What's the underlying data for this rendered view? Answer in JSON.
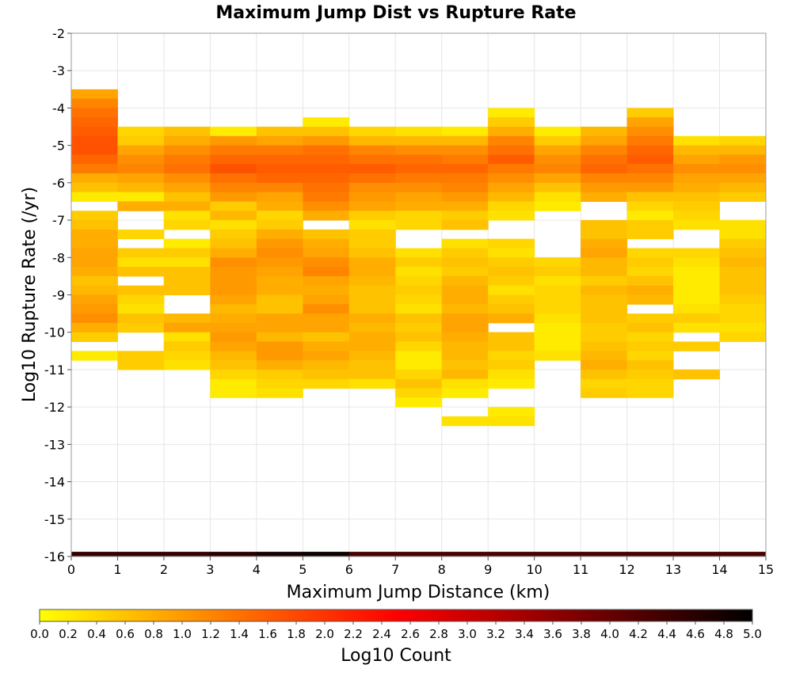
{
  "chart_data": {
    "type": "heatmap",
    "title": "Maximum Jump Dist vs Rupture Rate",
    "xlabel": "Maximum Jump Distance (km)",
    "ylabel": "Log10 Rupture Rate (/yr)",
    "xlim": [
      0,
      15
    ],
    "ylim": [
      -16,
      -2
    ],
    "x_bin_width": 1,
    "y_bin_width": 0.25,
    "grid": true,
    "x_ticks": [
      "0",
      "1",
      "2",
      "3",
      "4",
      "5",
      "6",
      "7",
      "8",
      "9",
      "10",
      "11",
      "12",
      "13",
      "14",
      "15"
    ],
    "y_ticks": [
      "-2",
      "-3",
      "-4",
      "-5",
      "-6",
      "-7",
      "-8",
      "-9",
      "-10",
      "-11",
      "-12",
      "-13",
      "-14",
      "-15",
      "-16"
    ],
    "colorbar": {
      "label": "Log10 Count",
      "range": [
        0.0,
        5.0
      ],
      "ticks": [
        "0.0",
        "0.2",
        "0.4",
        "0.6",
        "0.8",
        "1.0",
        "1.2",
        "1.4",
        "1.6",
        "1.8",
        "2.0",
        "2.2",
        "2.4",
        "2.6",
        "2.8",
        "3.0",
        "3.2",
        "3.4",
        "3.6",
        "3.8",
        "4.0",
        "4.2",
        "4.4",
        "4.6",
        "4.8",
        "5.0"
      ],
      "colors": [
        "#ffff00",
        "#ff8000",
        "#ff0000",
        "#800000",
        "#000000"
      ]
    },
    "bottom_row": {
      "y_bin": -16,
      "values": [
        4.5,
        4.5,
        4.5,
        4.6,
        4.8,
        4.9,
        4.3,
        4.3,
        4.3,
        4.3,
        4.3,
        4.3,
        4.3,
        4.3,
        4.3
      ]
    },
    "columns": [
      {
        "x": 0,
        "y_top": -3.5,
        "values": [
          0.9,
          1.2,
          1.4,
          1.5,
          1.6,
          1.7,
          1.7,
          1.5,
          1.3,
          0.8,
          0.6,
          0.2,
          null,
          0.5,
          0.6,
          0.8,
          0.8,
          0.9,
          0.9,
          0.8,
          0.6,
          0.7,
          0.9,
          1.0,
          1.1,
          0.8,
          0.5,
          null,
          0.2
        ]
      },
      {
        "x": 1,
        "y_top": -4.0,
        "values": [
          null,
          null,
          0.4,
          0.5,
          0.9,
          1.1,
          1.2,
          0.9,
          0.7,
          0.2,
          0.8,
          null,
          null,
          0.4,
          null,
          0.5,
          0.3,
          0.6,
          null,
          0.6,
          0.4,
          0.3,
          0.6,
          0.5,
          null,
          null,
          0.5,
          0.5
        ]
      },
      {
        "x": 2,
        "y_top": -4.0,
        "values": [
          null,
          null,
          0.6,
          0.8,
          1.1,
          1.3,
          1.4,
          1.1,
          0.9,
          0.6,
          0.8,
          0.3,
          0.4,
          null,
          0.2,
          0.5,
          0.3,
          0.6,
          0.6,
          0.6,
          null,
          null,
          0.7,
          0.9,
          0.3,
          0.5,
          0.4,
          0.3
        ]
      },
      {
        "x": 3,
        "y_top": -4.0,
        "values": [
          null,
          null,
          0.2,
          1.0,
          1.3,
          1.5,
          1.7,
          1.4,
          1.2,
          1.0,
          0.5,
          0.7,
          0.3,
          0.5,
          0.6,
          0.8,
          1.1,
          1.0,
          1.0,
          1.0,
          0.9,
          0.7,
          0.8,
          0.9,
          1.0,
          0.9,
          0.7,
          0.6,
          0.4,
          0.2,
          0.2
        ]
      },
      {
        "x": 4,
        "y_top": -4.0,
        "values": [
          null,
          null,
          0.6,
          0.9,
          1.3,
          1.5,
          1.6,
          1.5,
          1.2,
          0.9,
          0.8,
          0.4,
          0.5,
          0.8,
          1.0,
          1.1,
          1.0,
          0.9,
          0.8,
          0.8,
          0.6,
          0.6,
          0.9,
          0.9,
          0.7,
          1.0,
          1.0,
          0.8,
          0.5,
          0.4,
          0.3
        ]
      },
      {
        "x": 5,
        "y_top": -4.0,
        "values": [
          null,
          0.2,
          0.6,
          1.0,
          1.4,
          1.5,
          1.6,
          1.5,
          1.4,
          1.3,
          1.1,
          0.8,
          null,
          0.6,
          0.8,
          0.9,
          1.1,
          1.2,
          0.9,
          0.8,
          0.9,
          1.1,
          0.9,
          0.9,
          0.6,
          0.8,
          0.9,
          0.7,
          0.6,
          0.4
        ]
      },
      {
        "x": 6,
        "y_top": -4.0,
        "values": [
          null,
          null,
          0.4,
          0.7,
          1.2,
          1.4,
          1.6,
          1.4,
          1.1,
          1.0,
          0.9,
          0.5,
          0.3,
          0.5,
          0.5,
          0.6,
          0.8,
          0.8,
          0.7,
          0.6,
          0.6,
          0.6,
          0.8,
          0.7,
          0.8,
          0.8,
          0.7,
          0.6,
          0.6,
          0.3
        ]
      },
      {
        "x": 7,
        "y_top": -4.0,
        "values": [
          null,
          null,
          0.3,
          0.7,
          1.1,
          1.4,
          1.5,
          1.3,
          1.1,
          0.9,
          0.8,
          0.4,
          0.4,
          null,
          null,
          0.3,
          0.5,
          0.3,
          0.4,
          0.5,
          0.4,
          0.3,
          0.6,
          0.5,
          0.6,
          0.4,
          0.2,
          0.2,
          0.4,
          0.6,
          0.4,
          0.2
        ]
      },
      {
        "x": 8,
        "y_top": -4.0,
        "values": [
          null,
          null,
          0.2,
          0.7,
          1.1,
          1.3,
          1.5,
          1.3,
          1.2,
          1.0,
          0.8,
          0.5,
          0.6,
          null,
          0.3,
          0.5,
          0.6,
          0.5,
          0.7,
          0.8,
          0.8,
          0.7,
          0.9,
          0.9,
          0.8,
          0.7,
          0.7,
          0.6,
          0.7,
          0.3,
          0.2,
          null,
          null,
          0.3
        ]
      },
      {
        "x": 9,
        "y_top": -3.75,
        "values": [
          null,
          0.2,
          0.5,
          0.8,
          1.2,
          1.4,
          1.6,
          1.3,
          1.1,
          0.9,
          0.7,
          0.4,
          0.3,
          null,
          null,
          0.4,
          0.3,
          0.5,
          0.6,
          0.5,
          0.3,
          0.5,
          0.6,
          0.8,
          null,
          0.6,
          0.6,
          0.4,
          0.5,
          0.3,
          0.2,
          null,
          null,
          0.2,
          0.3
        ]
      },
      {
        "x": 10,
        "y_top": -4.0,
        "values": [
          null,
          null,
          0.2,
          0.5,
          0.9,
          1.1,
          1.2,
          0.9,
          0.6,
          0.3,
          0.2,
          null,
          null,
          null,
          null,
          null,
          0.4,
          0.5,
          0.3,
          0.4,
          0.4,
          0.4,
          0.3,
          0.2,
          0.2,
          0.2,
          0.3
        ]
      },
      {
        "x": 11,
        "y_top": -4.0,
        "values": [
          null,
          null,
          0.7,
          0.9,
          1.2,
          1.4,
          1.5,
          1.2,
          1.0,
          0.8,
          null,
          null,
          0.6,
          0.6,
          0.8,
          0.9,
          0.7,
          0.7,
          0.5,
          0.7,
          0.6,
          0.6,
          0.6,
          0.5,
          0.5,
          0.6,
          0.7,
          0.8,
          0.6,
          0.4,
          0.5
        ]
      },
      {
        "x": 12,
        "y_top": -3.75,
        "values": [
          null,
          0.5,
          0.9,
          1.1,
          1.3,
          1.5,
          1.6,
          1.4,
          1.2,
          1.0,
          0.6,
          0.4,
          0.2,
          0.5,
          0.5,
          null,
          0.4,
          0.5,
          0.4,
          0.6,
          0.8,
          0.7,
          null,
          0.5,
          0.6,
          0.4,
          0.5,
          0.4,
          0.6,
          0.5,
          0.4,
          0.4
        ]
      },
      {
        "x": 13,
        "y_top": -4.0,
        "values": [
          null,
          null,
          null,
          0.3,
          0.7,
          0.9,
          1.1,
          0.9,
          0.8,
          0.6,
          0.5,
          0.4,
          0.3,
          null,
          null,
          0.4,
          0.3,
          0.2,
          0.2,
          0.2,
          0.2,
          0.3,
          0.5,
          0.3,
          null,
          0.5,
          null,
          null,
          0.6
        ]
      },
      {
        "x": 14,
        "y_top": -4.0,
        "values": [
          null,
          null,
          null,
          0.4,
          0.7,
          1.0,
          1.1,
          0.9,
          0.7,
          0.5,
          null,
          null,
          0.3,
          0.3,
          0.5,
          0.6,
          0.7,
          0.6,
          0.6,
          0.6,
          0.5,
          0.4,
          0.4,
          0.3,
          0.4
        ]
      }
    ]
  }
}
